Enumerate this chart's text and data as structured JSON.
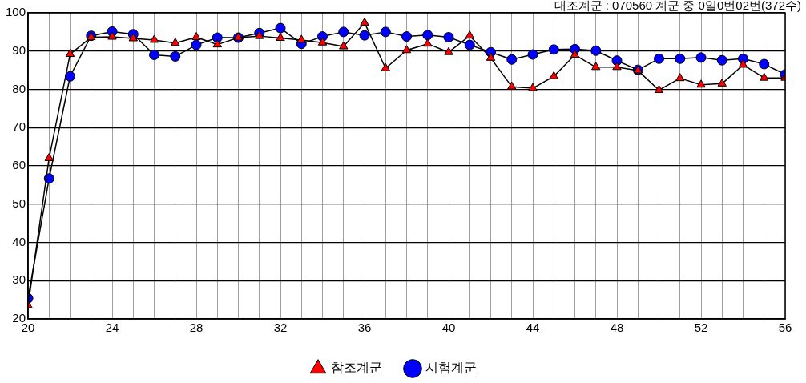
{
  "chart_data": {
    "type": "line",
    "annotations": [
      "대조계군 : 070560 계군 중 0일0번02번(372수)"
    ],
    "x": [
      20,
      21,
      22,
      23,
      24,
      25,
      26,
      27,
      28,
      29,
      30,
      31,
      32,
      33,
      34,
      35,
      36,
      37,
      38,
      39,
      40,
      41,
      42,
      43,
      44,
      45,
      46,
      47,
      48,
      49,
      50,
      51,
      52,
      53,
      54,
      55,
      56
    ],
    "series": [
      {
        "name": "시험계군",
        "color": "#0000ff",
        "marker": "circle",
        "values": [
          25.4,
          56.7,
          83.4,
          94,
          95.1,
          94.4,
          89,
          88.6,
          91.6,
          93.5,
          93.5,
          94.7,
          96,
          91.9,
          93.8,
          95,
          94.1,
          95,
          93.8,
          94.2,
          93.6,
          91.6,
          89.7,
          87.8,
          89.1,
          90.4,
          90.5,
          90.1,
          87.5,
          85.1,
          88,
          88,
          88.3,
          87.6,
          88,
          86.6,
          83.9
        ]
      },
      {
        "name": "참조계군",
        "color": "#ff0000",
        "marker": "triangle",
        "values": [
          23.5,
          62,
          89.2,
          93.6,
          93.7,
          93.3,
          92.9,
          92.1,
          93.6,
          91.7,
          93.5,
          93.9,
          93.4,
          92.9,
          92.2,
          91.2,
          97.4,
          85.5,
          90.2,
          91.9,
          89.7,
          94,
          88.2,
          80.7,
          80.3,
          83.4,
          89,
          85.8,
          85.8,
          84.9,
          79.8,
          82.9,
          81.2,
          81.5,
          86.4,
          83,
          83
        ]
      }
    ],
    "xlim": [
      20,
      56
    ],
    "xticks": [
      20,
      {
        "value": 21,
        "label": null
      },
      {
        "value": 22,
        "label": null
      },
      {
        "value": 23,
        "label": null
      },
      24,
      {
        "value": 25,
        "label": null
      },
      {
        "value": 26,
        "label": null
      },
      {
        "value": 27,
        "label": null
      },
      28,
      {
        "value": 29,
        "label": null
      },
      {
        "value": 30,
        "label": null
      },
      {
        "value": 31,
        "label": null
      },
      32,
      {
        "value": 33,
        "label": null
      },
      {
        "value": 34,
        "label": null
      },
      {
        "value": 35,
        "label": null
      },
      36,
      {
        "value": 37,
        "label": null
      },
      {
        "value": 38,
        "label": null
      },
      {
        "value": 39,
        "label": null
      },
      40,
      {
        "value": 41,
        "label": null
      },
      {
        "value": 42,
        "label": null
      },
      {
        "value": 43,
        "label": null
      },
      44,
      {
        "value": 45,
        "label": null
      },
      {
        "value": 46,
        "label": null
      },
      {
        "value": 47,
        "label": null
      },
      48,
      {
        "value": 49,
        "label": null
      },
      {
        "value": 50,
        "label": null
      },
      {
        "value": 51,
        "label": null
      },
      52,
      {
        "value": 53,
        "label": null
      },
      {
        "value": 54,
        "label": null
      },
      {
        "value": 55,
        "label": null
      },
      56
    ],
    "ylim": [
      20,
      100
    ],
    "yticks": [
      20,
      30,
      40,
      50,
      60,
      70,
      80,
      90,
      100
    ],
    "grid": true,
    "legend": "bottom",
    "line_style": "solid"
  }
}
